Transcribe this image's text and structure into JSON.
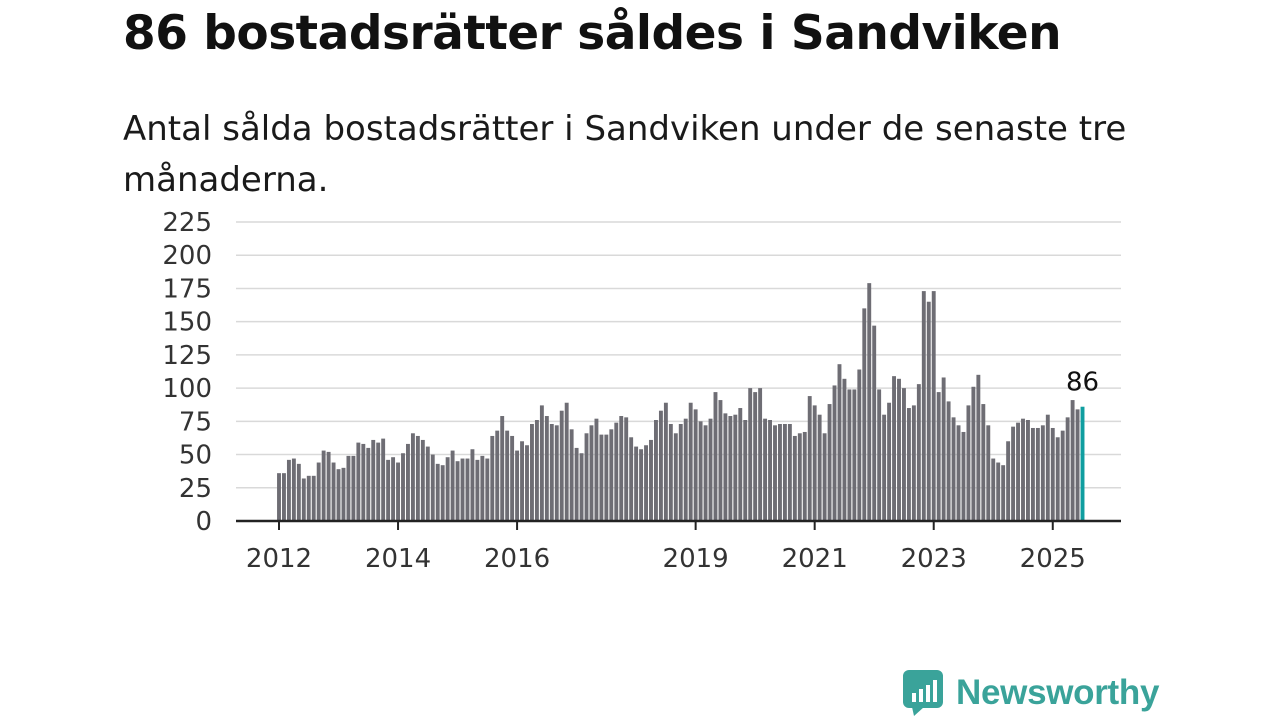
{
  "title": "86 bostadsrätter såldes i Sandviken",
  "subtitle": "Antal sålda bostadsrätter i Sandviken under de senaste tre månaderna.",
  "brand": {
    "name": "Newsworthy",
    "icon": "newsworthy-logo-icon",
    "color": "#3aa39a"
  },
  "colors": {
    "bar": "#6e6d74",
    "highlight": "#0f9ea0",
    "grid": "#d9d9d9",
    "axis": "#222222"
  },
  "chart_data": {
    "type": "bar",
    "title": "86 bostadsrätter såldes i Sandviken",
    "xlabel": "",
    "ylabel": "",
    "ylim": [
      0,
      225
    ],
    "yticks": [
      "0",
      "25",
      "50",
      "75",
      "100",
      "125",
      "150",
      "175",
      "200",
      "225"
    ],
    "xticks": [
      {
        "label": "2012",
        "month_index": 0
      },
      {
        "label": "2014",
        "month_index": 24
      },
      {
        "label": "2016",
        "month_index": 48
      },
      {
        "label": "2019",
        "month_index": 84
      },
      {
        "label": "2021",
        "month_index": 108
      },
      {
        "label": "2023",
        "month_index": 132
      },
      {
        "label": "2025",
        "month_index": 156
      }
    ],
    "start_month": "2012-01",
    "grid": true,
    "legend": "none",
    "highlight_last": true,
    "last_value_label": "86",
    "values": [
      36,
      36,
      46,
      47,
      43,
      32,
      34,
      34,
      44,
      53,
      52,
      44,
      39,
      40,
      49,
      49,
      59,
      58,
      55,
      61,
      59,
      62,
      46,
      48,
      44,
      51,
      58,
      66,
      64,
      61,
      56,
      50,
      43,
      42,
      48,
      53,
      45,
      47,
      47,
      54,
      46,
      49,
      47,
      64,
      68,
      79,
      68,
      64,
      53,
      60,
      57,
      73,
      76,
      87,
      79,
      73,
      72,
      83,
      89,
      69,
      55,
      51,
      66,
      72,
      77,
      65,
      65,
      69,
      74,
      79,
      78,
      63,
      56,
      54,
      57,
      61,
      76,
      83,
      89,
      73,
      66,
      73,
      77,
      89,
      84,
      75,
      72,
      77,
      97,
      91,
      81,
      79,
      80,
      85,
      76,
      100,
      97,
      100,
      77,
      76,
      72,
      73,
      73,
      73,
      64,
      66,
      67,
      94,
      87,
      80,
      66,
      88,
      102,
      118,
      107,
      99,
      99,
      114,
      160,
      179,
      147,
      99,
      80,
      89,
      109,
      107,
      100,
      85,
      87,
      103,
      173,
      165,
      173,
      97,
      108,
      90,
      78,
      72,
      67,
      87,
      101,
      110,
      88,
      72,
      47,
      44,
      42,
      60,
      71,
      74,
      77,
      76,
      70,
      70,
      72,
      80,
      70,
      63,
      68,
      78,
      91,
      84,
      86
    ]
  }
}
